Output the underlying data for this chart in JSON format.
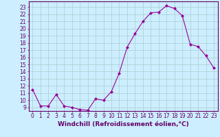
{
  "x": [
    0,
    1,
    2,
    3,
    4,
    5,
    6,
    7,
    8,
    9,
    10,
    11,
    12,
    13,
    14,
    15,
    16,
    17,
    18,
    19,
    20,
    21,
    22,
    23
  ],
  "y": [
    11.5,
    9.2,
    9.2,
    10.8,
    9.2,
    9.0,
    8.7,
    8.6,
    10.2,
    10.0,
    11.2,
    13.8,
    17.4,
    19.3,
    21.0,
    22.2,
    22.3,
    23.2,
    22.8,
    21.8,
    17.8,
    17.5,
    16.2,
    14.5
  ],
  "line_color": "#990099",
  "marker": "D",
  "marker_size": 2.0,
  "bg_color": "#cceeff",
  "grid_color": "#aacccc",
  "axis_color": "#660066",
  "xlabel": "Windchill (Refroidissement éolien,°C)",
  "ylabel_ticks": [
    9,
    10,
    11,
    12,
    13,
    14,
    15,
    16,
    17,
    18,
    19,
    20,
    21,
    22,
    23
  ],
  "ylim": [
    8.5,
    23.8
  ],
  "xlim": [
    -0.5,
    23.5
  ],
  "xticks": [
    0,
    1,
    2,
    3,
    4,
    5,
    6,
    7,
    8,
    9,
    10,
    11,
    12,
    13,
    14,
    15,
    16,
    17,
    18,
    19,
    20,
    21,
    22,
    23
  ],
  "tick_fontsize": 5.5,
  "xlabel_fontsize": 6.5
}
